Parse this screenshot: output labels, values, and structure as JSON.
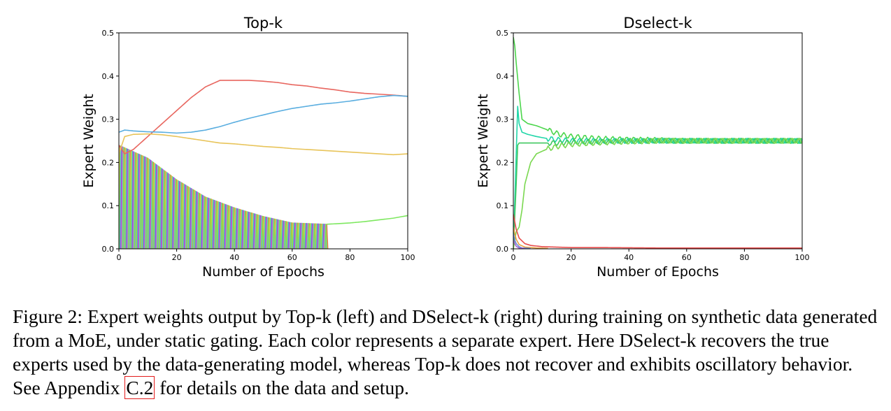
{
  "chart_data": [
    {
      "type": "line",
      "title": "Top-k",
      "xlabel": "Number of Epochs",
      "ylabel": "Expert Weight",
      "xlim": [
        0,
        100
      ],
      "ylim": [
        0,
        0.5
      ],
      "xticks": [
        "0",
        "20",
        "40",
        "60",
        "80",
        "100"
      ],
      "yticks": [
        "0.0",
        "0.1",
        "0.2",
        "0.3",
        "0.4",
        "0.5"
      ],
      "grid": false,
      "series": [
        {
          "color": "#e8665f",
          "x": [
            0,
            2,
            5,
            10,
            15,
            20,
            25,
            30,
            35,
            40,
            45,
            50,
            55,
            60,
            65,
            70,
            75,
            80,
            85,
            90,
            95,
            100
          ],
          "y": [
            0.24,
            0.22,
            0.23,
            0.26,
            0.29,
            0.32,
            0.35,
            0.375,
            0.39,
            0.39,
            0.39,
            0.388,
            0.385,
            0.38,
            0.377,
            0.372,
            0.368,
            0.363,
            0.36,
            0.358,
            0.356,
            0.353
          ]
        },
        {
          "color": "#5aaee0",
          "x": [
            0,
            2,
            5,
            10,
            15,
            20,
            25,
            30,
            35,
            40,
            45,
            50,
            55,
            60,
            65,
            70,
            75,
            80,
            85,
            90,
            95,
            100
          ],
          "y": [
            0.27,
            0.275,
            0.273,
            0.271,
            0.27,
            0.268,
            0.27,
            0.275,
            0.283,
            0.293,
            0.302,
            0.31,
            0.318,
            0.325,
            0.33,
            0.335,
            0.338,
            0.342,
            0.347,
            0.352,
            0.355,
            0.353
          ]
        },
        {
          "color": "#e8c45a",
          "x": [
            0,
            2,
            5,
            10,
            15,
            20,
            25,
            30,
            35,
            40,
            45,
            50,
            55,
            60,
            65,
            70,
            75,
            80,
            85,
            90,
            95,
            100
          ],
          "y": [
            0.22,
            0.26,
            0.265,
            0.266,
            0.264,
            0.26,
            0.255,
            0.25,
            0.245,
            0.243,
            0.24,
            0.237,
            0.235,
            0.232,
            0.23,
            0.228,
            0.226,
            0.224,
            0.222,
            0.22,
            0.218,
            0.22
          ]
        },
        {
          "color": "#7ee860",
          "x": [
            72,
            75,
            80,
            85,
            90,
            95,
            100
          ],
          "y": [
            0.057,
            0.058,
            0.06,
            0.063,
            0.067,
            0.071,
            0.077
          ]
        }
      ],
      "oscillation": {
        "colors": [
          "#e8665f",
          "#e8c45a",
          "#7ee860",
          "#5aaee0",
          "#8a55d6",
          "#e060c0",
          "#4fd6c8",
          "#a0d040"
        ],
        "x_start": 0,
        "x_end": 72,
        "period": 2,
        "peak_x": [
          0,
          10,
          20,
          30,
          40,
          50,
          60,
          72
        ],
        "peak_y": [
          0.24,
          0.21,
          0.16,
          0.12,
          0.095,
          0.075,
          0.06,
          0.057
        ]
      }
    },
    {
      "type": "line",
      "title": "Dselect-k",
      "xlabel": "Number of Epochs",
      "ylabel": "Expert Weight",
      "xlim": [
        0,
        100
      ],
      "ylim": [
        0,
        0.5
      ],
      "xticks": [
        "0",
        "20",
        "40",
        "60",
        "80",
        "100"
      ],
      "yticks": [
        "0.0",
        "0.1",
        "0.2",
        "0.3",
        "0.4",
        "0.5"
      ],
      "grid": false,
      "series": [
        {
          "color": "#4cd64c",
          "x": [
            0,
            0.5,
            1,
            2,
            3,
            5,
            8,
            12,
            16,
            20,
            30,
            40,
            50,
            60,
            70,
            80,
            90,
            100
          ],
          "y": [
            0.49,
            0.47,
            0.43,
            0.36,
            0.3,
            0.29,
            0.285,
            0.275,
            0.265,
            0.26,
            0.255,
            0.253,
            0.252,
            0.25,
            0.25,
            0.25,
            0.25,
            0.25
          ]
        },
        {
          "color": "#20d6a8",
          "x": [
            0,
            1,
            1.5,
            2,
            3,
            5,
            8,
            12,
            16,
            20,
            30,
            40,
            50,
            60,
            70,
            80,
            90,
            100
          ],
          "y": [
            0.0,
            0.22,
            0.33,
            0.29,
            0.27,
            0.265,
            0.26,
            0.255,
            0.252,
            0.25,
            0.25,
            0.25,
            0.25,
            0.25,
            0.25,
            0.25,
            0.25,
            0.25
          ]
        },
        {
          "color": "#40c860",
          "x": [
            0,
            1,
            1.5,
            2,
            3,
            5,
            8,
            12,
            16,
            20,
            30,
            40,
            50,
            60,
            70,
            80,
            90,
            100
          ],
          "y": [
            0.0,
            0.15,
            0.24,
            0.245,
            0.245,
            0.245,
            0.245,
            0.245,
            0.245,
            0.247,
            0.248,
            0.25,
            0.25,
            0.25,
            0.25,
            0.25,
            0.25,
            0.25
          ]
        },
        {
          "color": "#7ad850",
          "x": [
            0,
            1,
            2,
            3,
            4,
            6,
            8,
            12,
            16,
            20,
            30,
            40,
            50,
            60,
            70,
            80,
            90,
            100
          ],
          "y": [
            0.0,
            0.04,
            0.05,
            0.09,
            0.15,
            0.2,
            0.22,
            0.232,
            0.238,
            0.242,
            0.246,
            0.248,
            0.25,
            0.25,
            0.25,
            0.25,
            0.25,
            0.25
          ]
        },
        {
          "color": "#e84c4c",
          "x": [
            0,
            1,
            2,
            4,
            6,
            10,
            15,
            20,
            30,
            50,
            70,
            100
          ],
          "y": [
            0.08,
            0.045,
            0.025,
            0.012,
            0.008,
            0.005,
            0.004,
            0.003,
            0.003,
            0.002,
            0.002,
            0.002
          ]
        },
        {
          "color": "#e8a040",
          "x": [
            0,
            0.5,
            1,
            2,
            4,
            8,
            12
          ],
          "y": [
            0.05,
            0.035,
            0.022,
            0.01,
            0.004,
            0.002,
            0.001
          ]
        },
        {
          "color": "#6a8ad8",
          "x": [
            0,
            0.5,
            1,
            2,
            3,
            6
          ],
          "y": [
            0.035,
            0.02,
            0.012,
            0.005,
            0.002,
            0.001
          ]
        },
        {
          "color": "#a060d0",
          "x": [
            0,
            0.5,
            1,
            2,
            4
          ],
          "y": [
            0.02,
            0.012,
            0.006,
            0.002,
            0.001
          ]
        }
      ],
      "oscillation": {
        "amplitude": 0.006,
        "x_start": 12,
        "x_end": 100
      }
    }
  ],
  "caption": {
    "before_link": "Figure 2: Expert weights output by Top-k (left) and DSelect-k (right) during training on synthetic data generated from a MoE, under static gating. Each color represents a separate expert. Here DSelect-k recovers the true experts used by the data-generating model, whereas Top-k does not recover and exhibits oscillatory behavior. See Appendix ",
    "link_text": "C.2",
    "after_link": " for details on the data and setup."
  }
}
